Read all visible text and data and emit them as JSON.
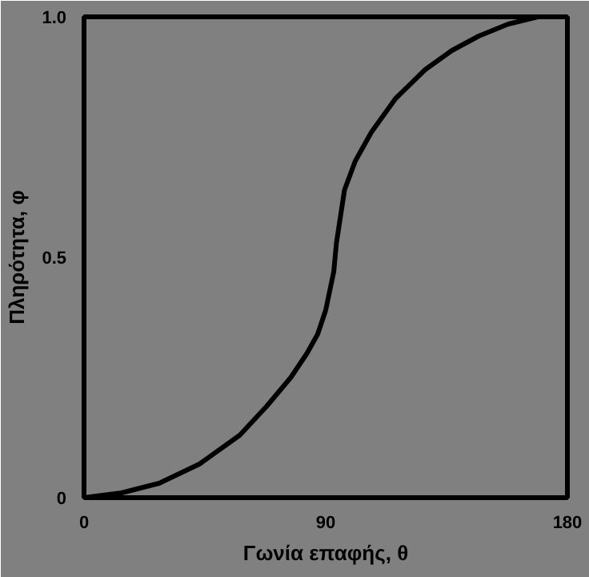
{
  "chart_data": {
    "type": "line",
    "xlabel": "Γωνία επαφής, θ",
    "ylabel": "Πληρότητα, φ",
    "x": [
      0,
      14,
      28,
      43,
      58,
      68,
      77,
      83,
      87,
      90,
      93,
      94,
      97,
      101,
      107,
      116,
      127,
      137,
      147,
      158,
      169
    ],
    "series": [
      {
        "color": "#000000",
        "values": [
          0,
          0.01,
          0.03,
          0.07,
          0.13,
          0.19,
          0.25,
          0.3,
          0.34,
          0.39,
          0.47,
          0.53,
          0.64,
          0.7,
          0.76,
          0.83,
          0.89,
          0.93,
          0.96,
          0.985,
          1.0
        ]
      }
    ],
    "xlim": [
      0,
      180
    ],
    "ylim": [
      0,
      1
    ],
    "xticks": [
      0,
      90,
      180
    ],
    "yticks": [
      0,
      0.5,
      {
        "value": 1,
        "label": "1.0"
      }
    ],
    "grid": false
  }
}
